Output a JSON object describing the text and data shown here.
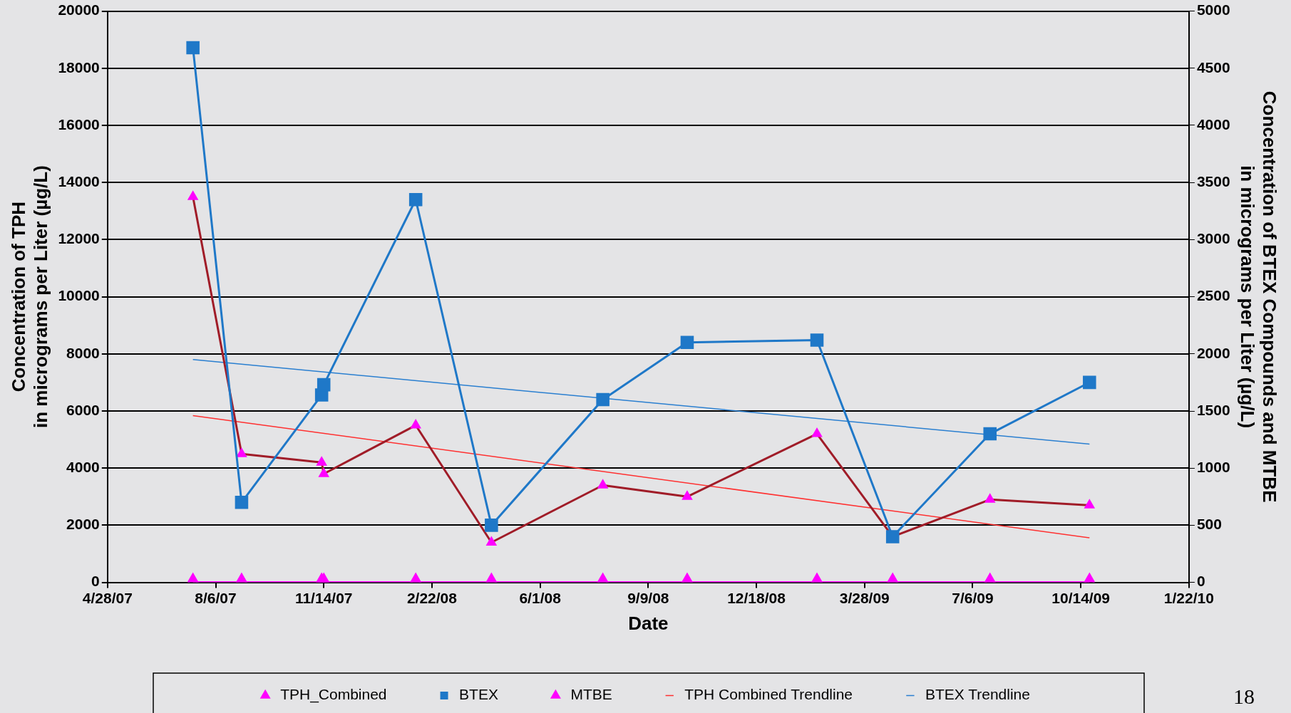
{
  "chart_data": {
    "type": "line",
    "xlabel": "Date",
    "ylabel": "Concentration of TPH\nin micrograms per Liter (µg/L)",
    "y2label": "Concentration of BTEX Compounds and MTBE\nin micrograms per Liter (µg/L)",
    "x": [
      "2007-07-16",
      "2007-08-30",
      "2007-11-12",
      "2007-11-14",
      "2008-02-07",
      "2008-04-17",
      "2008-07-29",
      "2008-10-15",
      "2009-02-12",
      "2009-04-23",
      "2009-07-22",
      "2009-10-22"
    ],
    "series": [
      {
        "name": "TPH_Combined",
        "color": "#a01c28",
        "marker": "triangle",
        "values": [
          13500,
          4500,
          4200,
          3800,
          5500,
          1400,
          3400,
          3000,
          5200,
          1600,
          2900,
          2700
        ]
      },
      {
        "name": "BTEX",
        "color": "#1f78c8",
        "marker": "square",
        "axis": "y2",
        "values": [
          4680,
          700,
          1640,
          1730,
          3350,
          500,
          1600,
          2100,
          2120,
          400,
          1300,
          1750
        ]
      },
      {
        "name": "MTBE",
        "color": "#ff00ff",
        "marker": "triangle",
        "axis": "y2",
        "values": [
          0,
          0,
          0,
          0,
          0,
          0,
          0,
          0,
          0,
          0,
          0,
          0
        ]
      },
      {
        "name": "TPH Combined Trendline",
        "color": "#ff3030",
        "marker": "none",
        "x": [
          "2007-07-16",
          "2009-10-22"
        ],
        "values": [
          5840,
          1560
        ]
      },
      {
        "name": "BTEX Trendline",
        "color": "#2a7fd0",
        "marker": "none",
        "axis": "y2",
        "x": [
          "2007-07-16",
          "2009-10-22"
        ],
        "values": [
          1950,
          1210
        ]
      }
    ],
    "xlim": [
      "2007-04-28",
      "2010-01-22"
    ],
    "xticks": [
      {
        "value": "2007-04-28",
        "label": "4/28/07"
      },
      {
        "value": "2007-08-06",
        "label": "8/6/07"
      },
      {
        "value": "2007-11-14",
        "label": "11/14/07"
      },
      {
        "value": "2008-02-22",
        "label": "2/22/08"
      },
      {
        "value": "2008-06-01",
        "label": "6/1/08"
      },
      {
        "value": "2008-09-09",
        "label": "9/9/08"
      },
      {
        "value": "2008-12-18",
        "label": "12/18/08"
      },
      {
        "value": "2009-03-28",
        "label": "3/28/09"
      },
      {
        "value": "2009-07-06",
        "label": "7/6/09"
      },
      {
        "value": "2009-10-14",
        "label": "10/14/09"
      },
      {
        "value": "2010-01-22",
        "label": "1/22/10"
      }
    ],
    "ylim": [
      0,
      20000
    ],
    "yticks": [
      0,
      2000,
      4000,
      6000,
      8000,
      10000,
      12000,
      14000,
      16000,
      18000,
      20000
    ],
    "y2lim": [
      0,
      5000
    ],
    "y2ticks": [
      0,
      500,
      1000,
      1500,
      2000,
      2500,
      3000,
      3500,
      4000,
      4500,
      5000
    ],
    "grid": "y",
    "legend": "bottom",
    "line_style": "solid",
    "annotations": [
      "18"
    ]
  }
}
